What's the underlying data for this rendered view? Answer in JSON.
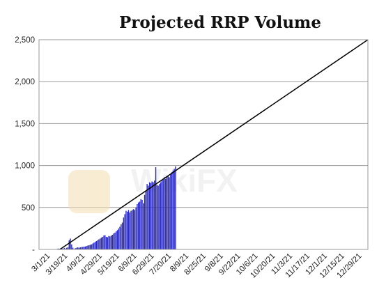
{
  "chart_data": {
    "type": "bar",
    "title": "Projected RRP Volume",
    "xlabel": "",
    "ylabel": "",
    "ylim": [
      0,
      2500
    ],
    "y_ticks": [
      "-",
      "500",
      "1,000",
      "1,500",
      "2,000",
      "2,500"
    ],
    "y_tick_values": [
      0,
      500,
      1000,
      1500,
      2000,
      2500
    ],
    "x_tick_labels": [
      "3/1/21",
      "3/19/21",
      "4/9/21",
      "4/29/21",
      "5/19/21",
      "6/9/21",
      "6/29/21",
      "7/20/21",
      "8/9/21",
      "8/25/21",
      "9/8/21",
      "9/22/21",
      "10/6/21",
      "10/20/21",
      "11/3/21",
      "11/17/21",
      "12/1/21",
      "12/15/21",
      "12/29/21"
    ],
    "grid": "horizontal",
    "legend": "none",
    "colors": {
      "bars": "#2a2ab8",
      "trend": "#000000",
      "grid": "#9a9a9a",
      "watermark": "#f3ddb0"
    },
    "series": [
      {
        "kind": "bar",
        "values": [
          0,
          0,
          0,
          0,
          0,
          0,
          0,
          0,
          0,
          0,
          0,
          0,
          0,
          0,
          5,
          10,
          8,
          12,
          15,
          8,
          18,
          10,
          20,
          25,
          110,
          130,
          60,
          20,
          5,
          15,
          20,
          25,
          20,
          25,
          28,
          30,
          32,
          35,
          40,
          45,
          50,
          55,
          60,
          70,
          80,
          90,
          100,
          110,
          120,
          130,
          140,
          150,
          165,
          170,
          150,
          145,
          160,
          155,
          165,
          175,
          190,
          200,
          215,
          230,
          250,
          270,
          300,
          320,
          380,
          420,
          460,
          450,
          470,
          440,
          460,
          470,
          480,
          470,
          500,
          540,
          560,
          570,
          600,
          590,
          550,
          650,
          700,
          780,
          760,
          800,
          790,
          810,
          800,
          820,
          980,
          770,
          760,
          780,
          800,
          820,
          830,
          860,
          840,
          870,
          880,
          860,
          900,
          920,
          940,
          960,
          990
        ]
      },
      {
        "kind": "line",
        "x": [
          "3/1/21",
          "12/29/21"
        ],
        "values": [
          0,
          2500
        ]
      }
    ]
  },
  "watermark": {
    "text": "WikiFX"
  }
}
